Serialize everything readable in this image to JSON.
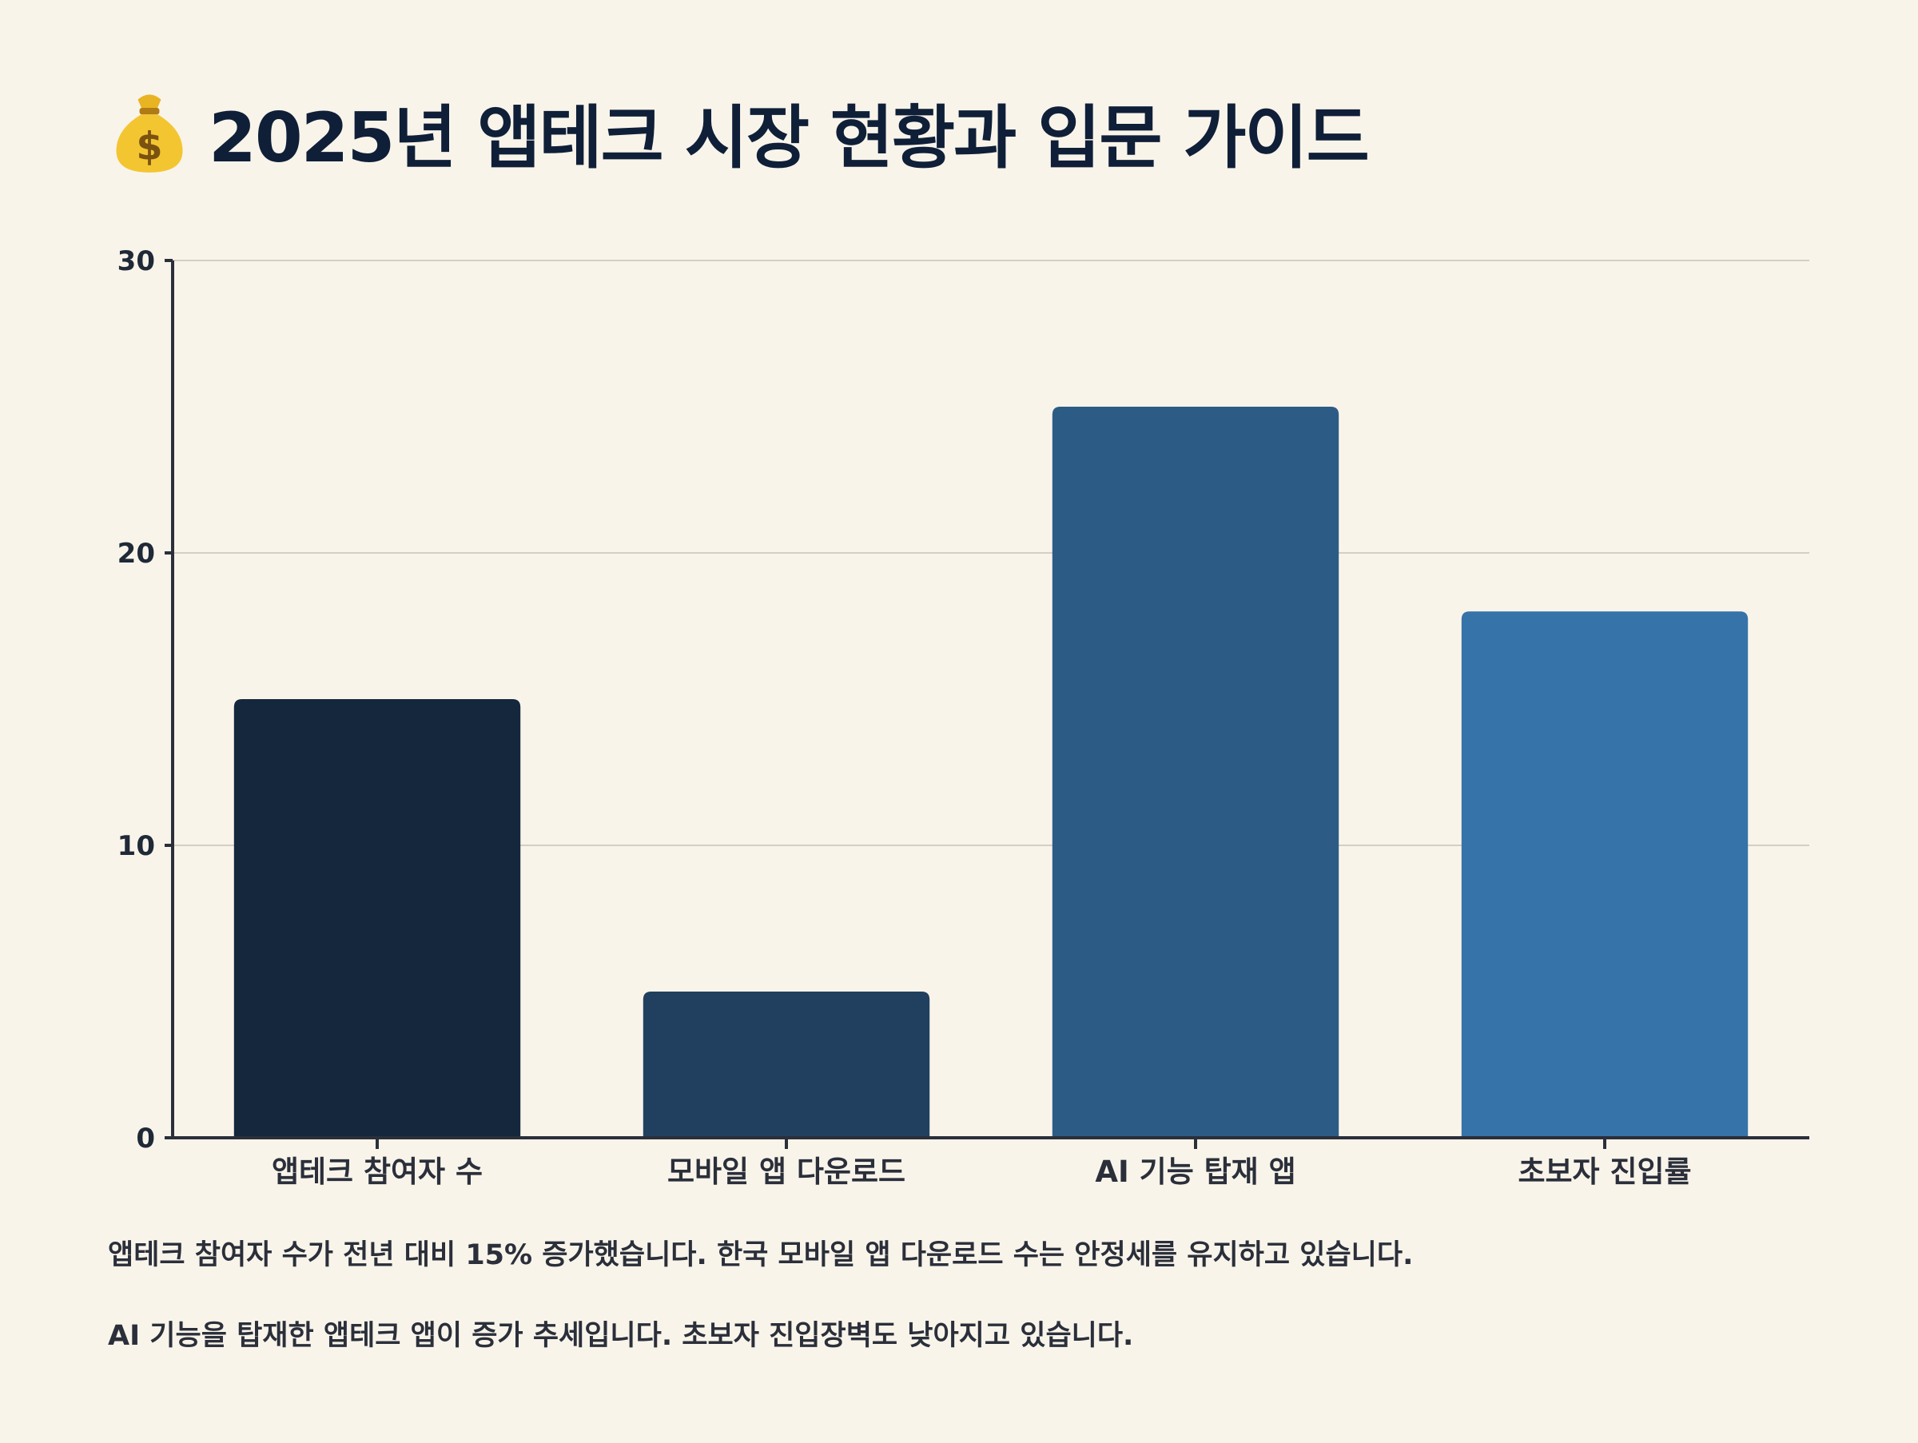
{
  "title": "2025년 앱테크 시장 현황과 입문 가이드",
  "title_icon": "money-bag-icon",
  "chart_data": {
    "type": "bar",
    "categories": [
      "앱테크 참여자 수",
      "모바일 앱 다운로드",
      "AI 기능 탑재 앱",
      "초보자 진입률"
    ],
    "values": [
      15,
      5,
      25,
      18
    ],
    "colors": [
      "#14273d",
      "#21405f",
      "#2c5c85",
      "#3673a8"
    ],
    "ylim": [
      0,
      30
    ],
    "yticks": [
      0,
      10,
      20,
      30
    ],
    "grid": true,
    "title": "",
    "xlabel": "",
    "ylabel": ""
  },
  "captions": [
    "앱테크 참여자 수가 전년 대비 15% 증가했습니다. 한국 모바일 앱 다운로드 수는 안정세를 유지하고 있습니다.",
    "AI 기능을 탑재한 앱테크 앱이 증가 추세입니다. 초보자 진입장벽도 낮아지고 있습니다."
  ]
}
